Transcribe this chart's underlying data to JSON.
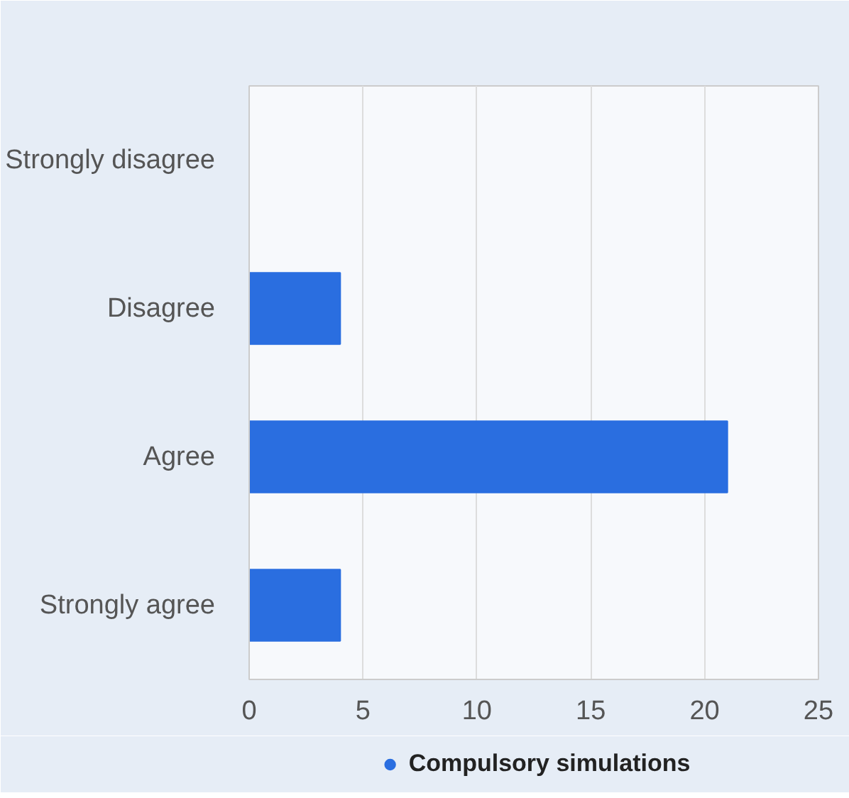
{
  "chart_data": {
    "type": "bar",
    "orientation": "horizontal",
    "categories": [
      "Strongly disagree",
      "Disagree",
      "Agree",
      "Strongly agree"
    ],
    "series": [
      {
        "name": "Compulsory simulations",
        "color": "#2a6ee0",
        "values": [
          0,
          4,
          21,
          4
        ]
      }
    ],
    "xlim": [
      0,
      25
    ],
    "xticks": [
      0,
      5,
      10,
      15,
      20,
      25
    ],
    "grid": "x",
    "legend": "bottom"
  }
}
